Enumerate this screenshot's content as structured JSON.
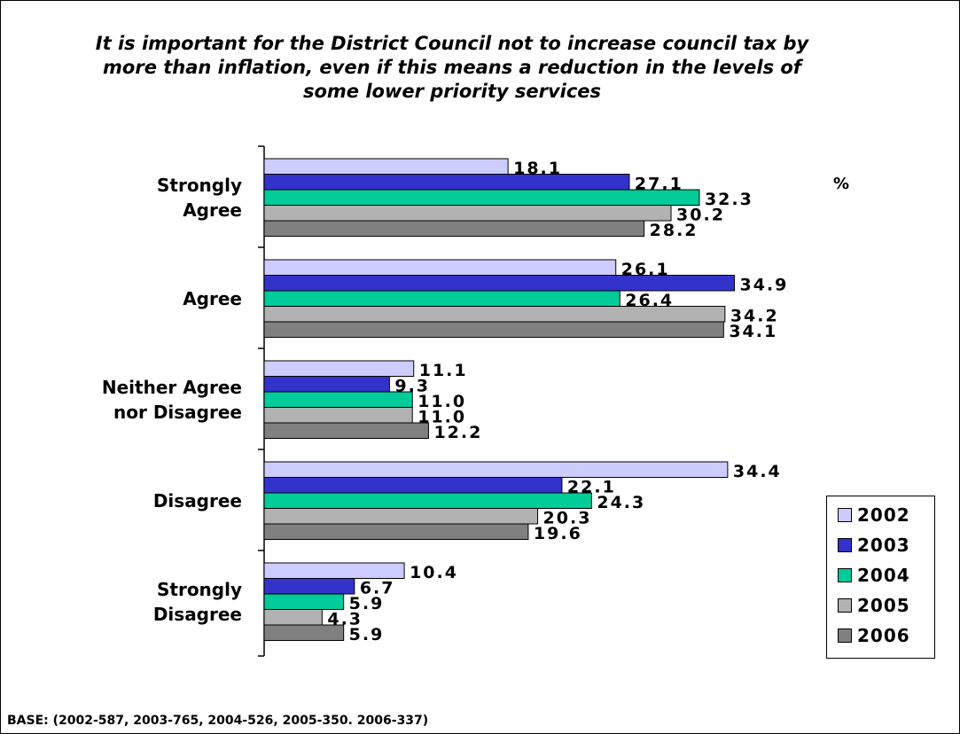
{
  "chart_data": {
    "type": "bar",
    "orientation": "horizontal",
    "title": "It is important for the District Council not to increase council tax by\nmore than inflation, even if this means a reduction in the levels of\nsome lower priority services",
    "unit": "%",
    "categories": [
      "Strongly\nAgree",
      "Agree",
      "Neither Agree\nnor Disagree",
      "Disagree",
      "Strongly\nDisagree"
    ],
    "series": [
      {
        "name": "2002",
        "color": "#ccccff",
        "values": [
          18.1,
          26.1,
          11.1,
          34.4,
          10.4
        ],
        "labels": [
          "18.1",
          "26.1",
          "11.1",
          "34.4",
          "10.4"
        ]
      },
      {
        "name": "2003",
        "color": "#3333cc",
        "values": [
          27.1,
          34.9,
          9.3,
          22.1,
          6.7
        ],
        "labels": [
          "27.1",
          "34.9",
          "9.3",
          "22.1",
          "6.7"
        ]
      },
      {
        "name": "2004",
        "color": "#00cc99",
        "values": [
          32.3,
          26.4,
          11.0,
          24.3,
          5.9
        ],
        "labels": [
          "32.3",
          "26.4",
          "11.0",
          "24.3",
          "5.9"
        ]
      },
      {
        "name": "2005",
        "color": "#b2b2b2",
        "values": [
          30.2,
          34.2,
          11.0,
          20.3,
          4.3
        ],
        "labels": [
          "30.2",
          "34.2",
          "11.0",
          "20.3",
          "4.3"
        ]
      },
      {
        "name": "2006",
        "color": "#808080",
        "values": [
          28.2,
          34.1,
          12.2,
          19.6,
          5.9
        ],
        "labels": [
          "28.2",
          "34.1",
          "12.2",
          "19.6",
          "5.9"
        ]
      }
    ],
    "xlim": [
      0,
      35
    ],
    "grid": false,
    "legend_position": "bottom-right"
  },
  "base_note": "BASE: (2002-587, 2003-765, 2004-526, 2005-350. 2006-337)"
}
